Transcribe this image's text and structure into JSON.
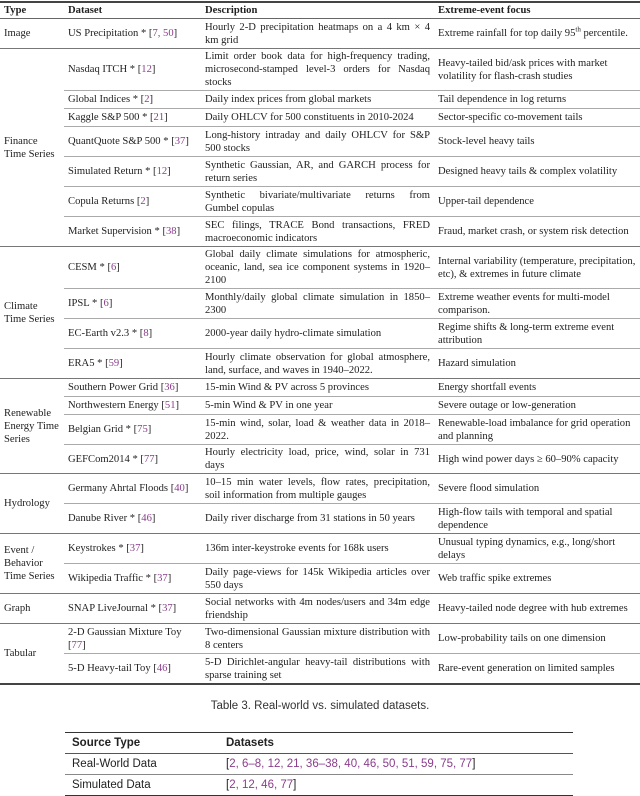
{
  "main_table": {
    "headers": [
      "Type",
      "Dataset",
      "Description",
      "Extreme-event focus"
    ],
    "groups": [
      {
        "type": "Image",
        "rows": [
          {
            "dataset": "US Precipitation",
            "star": true,
            "cites": "7, 50",
            "description": "Hourly 2-D precipitation heatmaps on a 4 km × 4 km grid",
            "focus": "Extreme rainfall for top daily 95",
            "focus_sup": "th",
            "focus_after": " percentile.",
            "lines": 2
          }
        ]
      },
      {
        "type": "Finance Time Series",
        "rows": [
          {
            "dataset": "Nasdaq ITCH",
            "star": true,
            "cites": "12",
            "description": "Limit order book data for high-frequency trading, microsecond-stamped level-3 orders for Nasdaq stocks",
            "focus": "Heavy-tailed bid/ask prices with market volatility for flash-crash studies",
            "lines": 2
          },
          {
            "dataset": "Global Indices",
            "star": true,
            "cites": "2",
            "description": "Daily index prices from global markets",
            "focus": "Tail dependence in log returns",
            "lines": 1
          },
          {
            "dataset": "Kaggle S&P 500",
            "star": true,
            "cites": "21",
            "description": "Daily OHLCV for 500 constituents in 2010-2024",
            "focus": "Sector-specific co-movement tails",
            "lines": 1
          },
          {
            "dataset": "QuantQuote S&P 500",
            "star": true,
            "cites": "37",
            "description": "Long-history intraday and daily OHLCV for S&P 500 stocks",
            "focus": "Stock-level heavy tails",
            "lines": 2
          },
          {
            "dataset": "Simulated Return",
            "star": true,
            "cites": "12",
            "description": "Synthetic Gaussian, AR, and GARCH process for return series",
            "focus": "Designed heavy tails & complex volatility",
            "lines": 2
          },
          {
            "dataset": "Copula Returns",
            "star": false,
            "cites": "2",
            "description": "Synthetic bivariate/multivariate returns from Gumbel copulas",
            "focus": "Upper-tail dependence",
            "lines": 2
          },
          {
            "dataset": "Market Supervision",
            "star": true,
            "cites": "38",
            "description": "SEC filings, TRACE Bond transactions, FRED macroeconomic indicators",
            "focus": "Fraud, market crash, or system risk detection",
            "lines": 2
          }
        ]
      },
      {
        "type": "Climate Time Series",
        "rows": [
          {
            "dataset": "CESM",
            "star": true,
            "cites": "6",
            "description": "Global daily climate simulations for atmospheric, oceanic, land, sea ice component systems in 1920–2100",
            "focus": "Internal variability (temperature, precipitation, etc), & extremes in future climate",
            "lines": 2
          },
          {
            "dataset": "IPSL",
            "star": true,
            "cites": "6",
            "description": "Monthly/daily global climate simulation in 1850–2300",
            "focus": "Extreme weather events for multi-model comparison.",
            "lines": 2
          },
          {
            "dataset": "EC-Earth v2.3",
            "star": true,
            "cites": "8",
            "description": "2000-year daily hydro-climate simulation",
            "focus": "Regime shifts & long-term extreme event attribution",
            "lines": 2
          },
          {
            "dataset": "ERA5",
            "star": true,
            "cites": "59",
            "description": "Hourly climate observation for global atmosphere, land, surface, and waves in 1940–2022.",
            "focus": "Hazard simulation",
            "lines": 2
          }
        ]
      },
      {
        "type": "Renewable Energy Time Series",
        "rows": [
          {
            "dataset": "Southern Power Grid",
            "star": false,
            "cites": "36",
            "description": "15-min Wind & PV across 5 provinces",
            "focus": "Energy shortfall events",
            "lines": 1
          },
          {
            "dataset": "Northwestern Energy",
            "star": false,
            "cites": "51",
            "description": "5-min Wind & PV in one year",
            "focus": "Severe outage or low-generation",
            "lines": 1
          },
          {
            "dataset": "Belgian Grid",
            "star": true,
            "cites": "75",
            "description": "15-min wind, solar, load & weather data in 2018–2022.",
            "focus": "Renewable-load imbalance for grid operation and planning",
            "lines": 2
          },
          {
            "dataset": "GEFCom2014",
            "star": true,
            "cites": "77",
            "description": "Hourly electricity load, price, wind, solar in 731 days",
            "focus": "High wind power days ≥ 60–90% capacity",
            "lines": 1
          }
        ]
      },
      {
        "type": "Hydrology",
        "rows": [
          {
            "dataset": "Germany Ahrtal Floods",
            "star": false,
            "cites": "40",
            "description": "10–15 min water levels, flow rates, precipitation, soil information from multiple gauges",
            "focus": "Severe flood simulation",
            "lines": 2
          },
          {
            "dataset": "Danube River",
            "star": true,
            "cites": "46",
            "description": "Daily river discharge from 31 stations in 50 years",
            "focus": "High-flow tails with temporal and spatial dependence",
            "lines": 2
          }
        ]
      },
      {
        "type": "Event / Behavior Time Series",
        "rows": [
          {
            "dataset": "Keystrokes",
            "star": true,
            "cites": "37",
            "description": "136m inter-keystroke events for 168k users",
            "focus": "Unusual typing dynamics, e.g., long/short delays",
            "lines": 2
          },
          {
            "dataset": "Wikipedia Traffic",
            "star": true,
            "cites": "37",
            "description": "Daily page-views for 145k Wikipedia articles over 550 days",
            "focus": "Web traffic spike extremes",
            "lines": 2
          }
        ]
      },
      {
        "type": "Graph",
        "rows": [
          {
            "dataset": "SNAP LiveJournal",
            "star": true,
            "cites": "37",
            "description": "Social networks with 4m nodes/users and 34m edge friendship",
            "focus": "Heavy-tailed node degree with hub extremes",
            "lines": 2
          }
        ]
      },
      {
        "type": "Tabular",
        "rows": [
          {
            "dataset": "2-D Gaussian Mixture Toy",
            "star": false,
            "cites": "77",
            "description": "Two-dimensional Gaussian mixture distribution with 8 centers",
            "focus": "Low-probability tails on one dimension",
            "lines": 2
          },
          {
            "dataset": "5-D Heavy-tail Toy",
            "star": false,
            "cites": "46",
            "description": "5-D Dirichlet-angular heavy-tail distributions with sparse training set",
            "focus": "Rare-event generation on limited samples",
            "lines": 2
          }
        ]
      }
    ]
  },
  "caption": "Table 3.  Real-world vs. simulated datasets.",
  "source_table": {
    "headers": [
      "Source Type",
      "Datasets"
    ],
    "rows": [
      {
        "type": "Real-World Data",
        "cites": "2, 6–8, 12, 21, 36–38, 40, 46, 50, 51, 59, 75, 77"
      },
      {
        "type": "Simulated Data",
        "cites": "2, 12, 46, 77"
      }
    ]
  },
  "colors": {
    "citation": "#8a3d8c",
    "rule": "#444444"
  }
}
